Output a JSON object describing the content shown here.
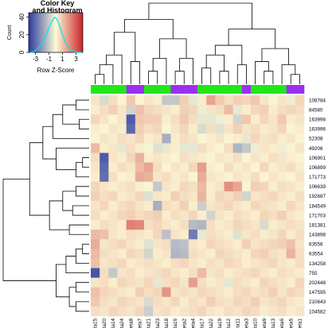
{
  "colors": {
    "low": "#2b3b9e",
    "mid": "#fcfbd8",
    "high": "#c9232a",
    "group_a": "#22e61a",
    "group_b": "#9b2ff0",
    "dendro": "#000000",
    "density": "#00e5ee"
  },
  "color_key": {
    "title_line1": "Color Key",
    "title_line2": "and Histogram",
    "ylabel": "Count",
    "xlabel": "Row Z-Score",
    "x_ticks": [
      "-3",
      "-1",
      "1",
      "3"
    ],
    "y_ticks": [
      "0",
      "20",
      "40"
    ],
    "x_range": [
      -4,
      4
    ],
    "y_range": [
      0,
      45
    ],
    "hist_counts": [
      0,
      0,
      1,
      2,
      4,
      6,
      9,
      12,
      17,
      22,
      28,
      33,
      37,
      40,
      38,
      33,
      27,
      20,
      14,
      9,
      6,
      3,
      2,
      1,
      0,
      0,
      0,
      0
    ]
  },
  "chart_data": {
    "type": "heatmap",
    "columns": [
      "beta15",
      "beta20",
      "beta14",
      "beta24",
      "beta8",
      "beta7",
      "beta21",
      "beta23",
      "beta18",
      "beta16",
      "beta2",
      "beta4",
      "beta17",
      "beta22",
      "beta19",
      "beta12",
      "beta11",
      "beta3",
      "beta10",
      "beta9",
      "beta13",
      "beta6",
      "beta5",
      "beta1"
    ],
    "column_groups": [
      "a",
      "a",
      "a",
      "a",
      "b",
      "b",
      "a",
      "a",
      "a",
      "b",
      "b",
      "b",
      "a",
      "a",
      "a",
      "a",
      "a",
      "b",
      "a",
      "a",
      "a",
      "a",
      "b",
      "b"
    ],
    "rows": [
      "108784",
      "84580",
      "163998",
      "163996",
      "52308",
      "49206",
      "106901",
      "106899",
      "171773",
      "106639",
      "192687",
      "184549",
      "171703",
      "181381",
      "143898",
      "63556",
      "63554",
      "134258",
      "755",
      "202648",
      "147595",
      "210643",
      "104582"
    ],
    "values": [
      [
        0.3,
        -0.5,
        0.4,
        0.1,
        0.7,
        0.1,
        0.3,
        0.2,
        -0.8,
        -0.8,
        0.6,
        -0.3,
        0.2,
        1.2,
        0.7,
        0.4,
        0.6,
        0.5,
        0.7,
        0.3,
        0.1,
        0.3,
        -0.2,
        0.5
      ],
      [
        0.2,
        0.4,
        0.6,
        0.3,
        -0.6,
        0.8,
        0.5,
        0.4,
        0.3,
        0.2,
        0.6,
        0.5,
        -0.2,
        0.3,
        0.4,
        0.9,
        -0.3,
        0.2,
        0.5,
        0.6,
        0.2,
        0.4,
        0.5,
        0.4
      ],
      [
        0.5,
        0.3,
        0.1,
        0.3,
        -2.5,
        0.7,
        0.6,
        0.6,
        0.2,
        0.4,
        0.7,
        0.4,
        -0.3,
        -0.3,
        -0.2,
        0.2,
        -0.6,
        0.7,
        0.2,
        0.5,
        0.3,
        0.7,
        0.2,
        0.3
      ],
      [
        0.2,
        0.1,
        0.3,
        0.2,
        -2.3,
        0.6,
        0.4,
        0.5,
        0.1,
        0.3,
        0.5,
        0.2,
        -0.5,
        0.4,
        -0.4,
        0.3,
        0.6,
        0.3,
        0.4,
        0.2,
        0.3,
        0.5,
        0.1,
        0.2
      ],
      [
        0.1,
        0.3,
        0.2,
        0.4,
        0.3,
        0.5,
        0.2,
        0.3,
        -1.2,
        0.2,
        0.4,
        0.3,
        0.1,
        0.2,
        0.3,
        0.1,
        0.2,
        -0.3,
        0.5,
        0.3,
        0.4,
        0.2,
        0.3,
        0.1
      ],
      [
        0.9,
        0.2,
        0.3,
        -0.3,
        0.4,
        0.2,
        -0.1,
        -0.4,
        -0.3,
        0.2,
        -0.3,
        -0.3,
        0.4,
        0.2,
        0.1,
        0.4,
        -1.1,
        -0.8,
        -0.2,
        0.3,
        0.2,
        -0.2,
        0.1,
        0.3
      ],
      [
        0.4,
        -2.5,
        0.3,
        0.2,
        0.5,
        1.0,
        0.2,
        0.3,
        0.2,
        0.1,
        0.4,
        0.3,
        0.2,
        0.1,
        0.3,
        0.2,
        0.4,
        0.1,
        0.3,
        0.2,
        0.4,
        0.3,
        0.2,
        0.1
      ],
      [
        0.3,
        -2.3,
        0.2,
        0.4,
        0.3,
        0.9,
        1.2,
        0.4,
        0.1,
        0.3,
        0.2,
        0.5,
        1.3,
        0.2,
        0.1,
        0.4,
        0.2,
        0.3,
        0.1,
        0.5,
        0.2,
        0.3,
        0.4,
        0.2
      ],
      [
        0.2,
        -2.2,
        0.4,
        0.1,
        0.2,
        1.1,
        1.0,
        0.3,
        0.4,
        0.2,
        0.3,
        0.1,
        1.1,
        0.3,
        0.2,
        0.1,
        0.3,
        0.2,
        0.4,
        0.1,
        0.3,
        0.2,
        0.1,
        0.3
      ],
      [
        0.5,
        0.3,
        0.2,
        0.3,
        0.4,
        0.2,
        0.1,
        -0.8,
        0.3,
        0.2,
        0.5,
        0.4,
        0.9,
        0.2,
        0.3,
        1.5,
        1.2,
        0.1,
        0.6,
        0.5,
        0.2,
        0.4,
        0.3,
        0.2
      ],
      [
        0.6,
        0.4,
        0.5,
        0.2,
        0.3,
        0.5,
        -0.4,
        0.3,
        0.2,
        0.6,
        0.4,
        0.3,
        1.0,
        0.2,
        0.5,
        0.4,
        0.6,
        -0.6,
        0.3,
        0.4,
        0.5,
        0.3,
        0.2,
        0.4
      ],
      [
        0.3,
        0.5,
        0.2,
        0.4,
        0.5,
        0.3,
        0.2,
        -1.2,
        0.4,
        0.3,
        0.6,
        0.2,
        -0.7,
        0.3,
        0.4,
        0.5,
        0.3,
        0.2,
        0.5,
        0.4,
        0.3,
        0.2,
        0.5,
        0.3
      ],
      [
        0.4,
        0.2,
        0.3,
        0.5,
        0.6,
        0.4,
        0.5,
        0.6,
        0.2,
        0.4,
        0.3,
        0.5,
        0.2,
        -0.6,
        0.3,
        0.2,
        0.4,
        0.3,
        0.2,
        0.5,
        0.4,
        0.6,
        0.3,
        0.2
      ],
      [
        0.2,
        0.4,
        0.3,
        0.2,
        1.7,
        1.6,
        0.4,
        0.5,
        0.3,
        0.2,
        0.4,
        -1.0,
        -1.1,
        0.4,
        0.2,
        0.3,
        0.5,
        0.4,
        0.3,
        -0.5,
        0.2,
        0.3,
        0.4,
        0.3
      ],
      [
        0.9,
        0.8,
        0.3,
        0.2,
        0.4,
        0.3,
        0.2,
        0.5,
        -0.9,
        0.3,
        0.2,
        -2.0,
        -0.3,
        0.4,
        0.3,
        0.2,
        -0.4,
        0.3,
        0.4,
        0.2,
        0.3,
        0.5,
        0.2,
        0.4
      ],
      [
        1.1,
        0.3,
        0.4,
        0.5,
        0.3,
        0.2,
        -0.4,
        0.3,
        0.4,
        -1.0,
        -0.9,
        0.3,
        0.2,
        0.5,
        0.4,
        0.3,
        0.2,
        0.6,
        0.3,
        0.4,
        0.5,
        0.6,
        0.8,
        0.3
      ],
      [
        0.9,
        0.4,
        0.3,
        0.2,
        0.5,
        0.4,
        -0.6,
        0.2,
        0.3,
        -1.1,
        -1.0,
        0.4,
        0.3,
        0.2,
        0.5,
        0.4,
        0.3,
        0.2,
        0.5,
        0.6,
        0.4,
        0.3,
        1.0,
        0.4
      ],
      [
        0.8,
        0.3,
        0.4,
        0.5,
        0.2,
        0.3,
        0.4,
        0.3,
        0.2,
        0.4,
        0.5,
        0.3,
        0.2,
        0.4,
        0.3,
        0.5,
        0.4,
        0.2,
        0.3,
        0.4,
        0.5,
        0.3,
        0.2,
        0.4
      ],
      [
        -2.6,
        0.4,
        -0.8,
        0.3,
        0.4,
        0.2,
        0.3,
        0.4,
        0.5,
        0.3,
        0.2,
        0.4,
        0.9,
        0.3,
        0.4,
        0.2,
        0.3,
        0.4,
        0.5,
        0.3,
        0.2,
        0.4,
        0.3,
        0.2
      ],
      [
        0.3,
        0.4,
        0.2,
        0.5,
        0.4,
        0.3,
        0.5,
        -0.3,
        0.4,
        0.5,
        0.3,
        1.3,
        0.4,
        0.2,
        0.3,
        -0.3,
        0.4,
        0.3,
        0.2,
        0.5,
        0.4,
        0.3,
        0.2,
        0.5
      ],
      [
        0.8,
        0.5,
        0.4,
        0.3,
        0.2,
        0.6,
        0.4,
        0.5,
        1.4,
        0.3,
        0.4,
        0.3,
        0.5,
        0.4,
        0.3,
        0.2,
        0.4,
        0.5,
        0.3,
        0.4,
        0.6,
        0.3,
        0.5,
        0.4
      ],
      [
        0.7,
        0.4,
        0.3,
        0.5,
        0.4,
        0.3,
        -0.5,
        0.4,
        0.3,
        0.5,
        0.2,
        0.4,
        0.3,
        0.6,
        0.4,
        0.3,
        0.5,
        0.4,
        0.6,
        0.3,
        0.4,
        0.5,
        0.3,
        0.2
      ],
      [
        0.4,
        0.3,
        0.5,
        0.4,
        0.3,
        0.5,
        -0.7,
        0.3,
        0.4,
        0.2,
        0.3,
        0.4,
        0.5,
        0.3,
        0.2,
        0.4,
        0.3,
        0.5,
        0.4,
        0.2,
        0.3,
        0.4,
        0.2,
        0.3
      ]
    ]
  }
}
